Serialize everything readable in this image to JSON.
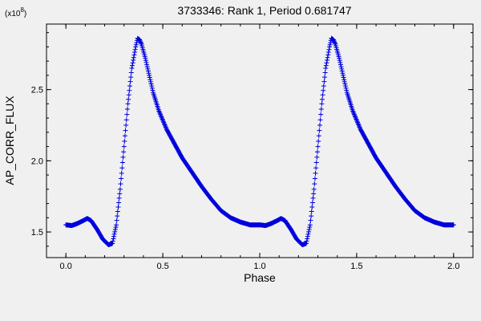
{
  "chart_data": {
    "type": "scatter",
    "title": "3733346: Rank 1, Period 0.681747",
    "xlabel": "Phase",
    "ylabel": "AP_CORR_FLUX",
    "y_scale_label_base": "(x10",
    "y_scale_label_exp": "8",
    "y_scale_label_close": ")",
    "xlim": [
      -0.1,
      2.1
    ],
    "ylim": [
      1.32,
      2.96
    ],
    "x_ticks": [
      0.0,
      0.5,
      1.0,
      1.5,
      2.0
    ],
    "x_tick_labels": [
      "0.0",
      "0.5",
      "1.0",
      "1.5",
      "2.0"
    ],
    "y_ticks": [
      1.5,
      2.0,
      2.5
    ],
    "y_tick_labels": [
      "1.5",
      "2.0",
      "2.5"
    ],
    "marker": "+",
    "color": "#0000dd",
    "background": "#f0f0f0",
    "grid": false,
    "period": 1.0,
    "series": [
      {
        "name": "",
        "x": [
          0.0,
          0.03,
          0.06,
          0.09,
          0.11,
          0.13,
          0.16,
          0.19,
          0.22,
          0.24,
          0.26,
          0.28,
          0.3,
          0.32,
          0.34,
          0.36,
          0.37,
          0.38,
          0.39,
          0.41,
          0.43,
          0.45,
          0.48,
          0.52,
          0.56,
          0.6,
          0.65,
          0.7,
          0.75,
          0.8,
          0.85,
          0.9,
          0.95,
          1.0
        ],
        "y": [
          1.55,
          1.545,
          1.56,
          1.58,
          1.595,
          1.58,
          1.52,
          1.45,
          1.41,
          1.42,
          1.55,
          1.8,
          2.1,
          2.4,
          2.65,
          2.8,
          2.86,
          2.85,
          2.82,
          2.72,
          2.6,
          2.48,
          2.35,
          2.22,
          2.12,
          2.02,
          1.92,
          1.82,
          1.73,
          1.65,
          1.6,
          1.57,
          1.55,
          1.55
        ]
      }
    ]
  }
}
